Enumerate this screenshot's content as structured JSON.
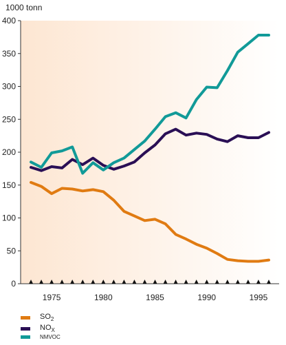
{
  "chart_data": {
    "type": "line",
    "ylabel": "1000 tonn",
    "ylim": [
      0,
      400
    ],
    "yticks": [
      0,
      50,
      100,
      150,
      200,
      250,
      300,
      350,
      400
    ],
    "xlim": [
      1972,
      1997
    ],
    "xticks": [
      1975,
      1980,
      1985,
      1990,
      1995
    ],
    "x": [
      1973,
      1974,
      1975,
      1976,
      1977,
      1978,
      1979,
      1980,
      1981,
      1982,
      1983,
      1984,
      1985,
      1986,
      1987,
      1988,
      1989,
      1990,
      1991,
      1992,
      1993,
      1994,
      1995,
      1996
    ],
    "grid": false,
    "background_gradient": [
      "#fde6d2",
      "#ffffff"
    ],
    "series": [
      {
        "name": "SO",
        "subscript": "2",
        "color": "#e07b12",
        "values": [
          154,
          148,
          137,
          145,
          144,
          141,
          143,
          140,
          127,
          110,
          103,
          96,
          98,
          91,
          75,
          68,
          60,
          54,
          46,
          37,
          35,
          34,
          34,
          36
        ]
      },
      {
        "name": "NO",
        "subscript": "X",
        "color": "#2a0f55",
        "values": [
          177,
          172,
          178,
          176,
          189,
          181,
          191,
          180,
          174,
          179,
          185,
          199,
          211,
          228,
          235,
          226,
          229,
          227,
          220,
          216,
          225,
          222,
          222,
          230
        ]
      },
      {
        "name": "NMVOC",
        "subscript": "",
        "color": "#119a98",
        "values": [
          185,
          177,
          199,
          202,
          208,
          168,
          184,
          173,
          184,
          191,
          204,
          217,
          235,
          254,
          260,
          252,
          280,
          299,
          298,
          324,
          352,
          365,
          378,
          378
        ]
      }
    ]
  }
}
